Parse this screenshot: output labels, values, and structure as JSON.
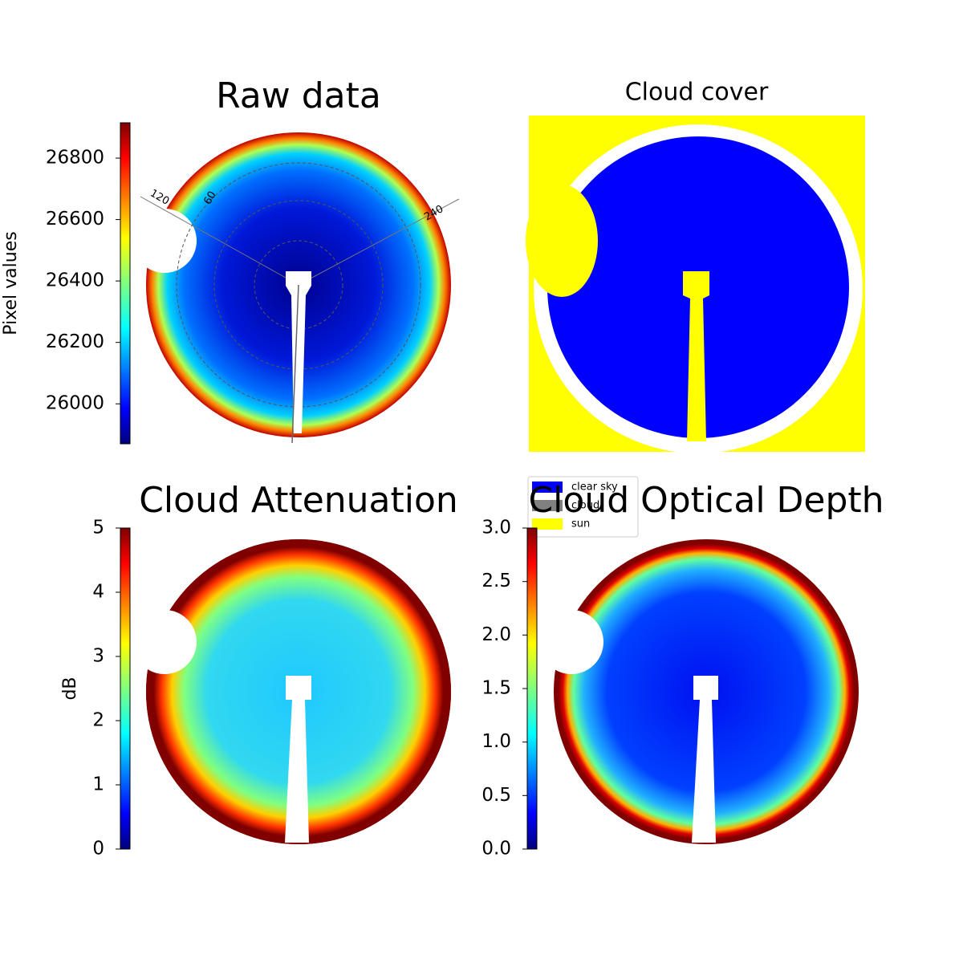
{
  "chart_data": [
    {
      "type": "image",
      "title": "Raw data",
      "colormap": "jet",
      "polar_labels": [
        "120",
        "60",
        "240"
      ],
      "colorbar": {
        "label": "Pixel values",
        "lim": [
          25870,
          26915
        ],
        "ticks": [
          26000,
          26200,
          26400,
          26600,
          26800
        ]
      }
    },
    {
      "type": "image",
      "title": "Cloud cover",
      "legend": [
        {
          "name": "clear sky",
          "color": "#0000ff"
        },
        {
          "name": "cloud",
          "color": "#808080"
        },
        {
          "name": "sun",
          "color": "#ffff00"
        }
      ]
    },
    {
      "type": "image",
      "title": "Cloud Attenuation",
      "colormap": "jet",
      "colorbar": {
        "label": "dB",
        "lim": [
          0,
          5
        ],
        "ticks": [
          0,
          1,
          2,
          3,
          4,
          5
        ]
      }
    },
    {
      "type": "image",
      "title": "Cloud Optical Depth",
      "colormap": "jet",
      "colorbar": {
        "lim": [
          0,
          3
        ],
        "ticks": [
          {
            "value": 0,
            "label": "0.0"
          },
          0.5,
          {
            "value": 1,
            "label": "1.0"
          },
          1.5,
          {
            "value": 2,
            "label": "2.0"
          },
          2.5,
          {
            "value": 3,
            "label": "3.0"
          }
        ]
      }
    }
  ]
}
